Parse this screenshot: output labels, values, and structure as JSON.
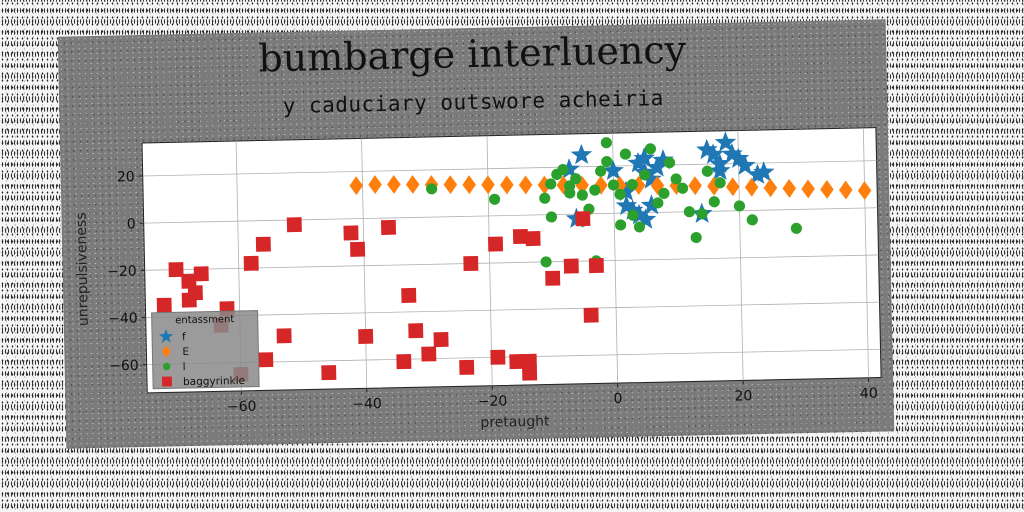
{
  "chart_data": {
    "type": "scatter",
    "title": "bumbarge interluency",
    "subtitle": "y caduciary outswore acheiria",
    "xlabel": "pretaught",
    "ylabel": "unrepulsiveness",
    "xlim": [
      -75,
      42
    ],
    "ylim": [
      -72,
      34
    ],
    "xticks": [
      -60,
      -40,
      -20,
      0,
      20,
      40
    ],
    "yticks": [
      20,
      0,
      -20,
      -40,
      -60
    ],
    "xtick_labels": [
      "−60",
      "−40",
      "−20",
      "0",
      "20",
      "40"
    ],
    "ytick_labels": [
      "20",
      "0",
      "−20",
      "−40",
      "−60"
    ],
    "grid": true,
    "legend": {
      "title": "entassment",
      "placement": "lower-left",
      "entries": [
        "f",
        "E",
        "l",
        "baggyrinkle"
      ]
    },
    "series": [
      {
        "name": "f",
        "marker": "star",
        "color": "#1f77b4",
        "points": [
          [
            -7,
            19
          ],
          [
            -5,
            25
          ],
          [
            -6,
            -2
          ],
          [
            0,
            18
          ],
          [
            2,
            9
          ],
          [
            3,
            1
          ],
          [
            4,
            21
          ],
          [
            5,
            23
          ],
          [
            5,
            17
          ],
          [
            6,
            14
          ],
          [
            7,
            19
          ],
          [
            8,
            22
          ],
          [
            2,
            3
          ],
          [
            4,
            -1
          ],
          [
            6,
            3
          ],
          [
            14,
            -1
          ],
          [
            15,
            26
          ],
          [
            16,
            24
          ],
          [
            17,
            17
          ],
          [
            17,
            20
          ],
          [
            18,
            29
          ],
          [
            19,
            24
          ],
          [
            20,
            22
          ],
          [
            21,
            19
          ],
          [
            23,
            15
          ],
          [
            24,
            16
          ],
          [
            5,
            -3
          ]
        ]
      },
      {
        "name": "E",
        "marker": "diamond",
        "color": "#ff7f0e",
        "points": [
          [
            -41,
            14
          ],
          [
            -38,
            14.3
          ],
          [
            -35,
            14.2
          ],
          [
            -32,
            14
          ],
          [
            -29,
            13.8
          ],
          [
            -26,
            13.6
          ],
          [
            -23,
            13.4
          ],
          [
            -20,
            13.2
          ],
          [
            -17,
            13
          ],
          [
            -14,
            12.8
          ],
          [
            -11,
            12.6
          ],
          [
            -8,
            12.4
          ],
          [
            -5,
            12.2
          ],
          [
            -2,
            12
          ],
          [
            1,
            11.8
          ],
          [
            4,
            11.6
          ],
          [
            7,
            11.4
          ],
          [
            10,
            11.2
          ],
          [
            13,
            11
          ],
          [
            16,
            10.6
          ],
          [
            19,
            10.2
          ],
          [
            22,
            9.8
          ],
          [
            25,
            9.4
          ],
          [
            28,
            9
          ],
          [
            31,
            8.6
          ],
          [
            34,
            8.2
          ],
          [
            37,
            7.8
          ],
          [
            40,
            7.4
          ]
        ]
      },
      {
        "name": "l",
        "marker": "circle",
        "color": "#2ca02c",
        "points": [
          [
            -29,
            12
          ],
          [
            -19,
            7
          ],
          [
            -11,
            7
          ],
          [
            -10,
            13
          ],
          [
            -9,
            17
          ],
          [
            -8,
            19
          ],
          [
            -7,
            12
          ],
          [
            -7,
            9
          ],
          [
            -6,
            15
          ],
          [
            -5,
            8
          ],
          [
            -4,
            2
          ],
          [
            -3,
            10
          ],
          [
            -2,
            18
          ],
          [
            -1,
            22
          ],
          [
            -1,
            30
          ],
          [
            0,
            12
          ],
          [
            1,
            8
          ],
          [
            1,
            -5
          ],
          [
            2,
            25
          ],
          [
            3,
            12
          ],
          [
            3,
            -1
          ],
          [
            4,
            -6
          ],
          [
            5,
            16
          ],
          [
            6,
            27
          ],
          [
            7,
            4
          ],
          [
            8,
            8
          ],
          [
            9,
            21
          ],
          [
            10,
            14
          ],
          [
            11,
            10
          ],
          [
            12,
            0
          ],
          [
            13,
            -11
          ],
          [
            14,
            -1
          ],
          [
            15,
            17
          ],
          [
            16,
            4
          ],
          [
            17,
            12
          ],
          [
            20,
            2
          ],
          [
            22,
            -4
          ],
          [
            29,
            -8
          ],
          [
            -10,
            -1
          ],
          [
            -11,
            -20
          ],
          [
            -5,
            -3
          ],
          [
            -3,
            -20
          ]
        ]
      },
      {
        "name": "baggyrinkle",
        "marker": "square",
        "color": "#d62728",
        "points": [
          [
            -51,
            -2
          ],
          [
            -56,
            -10
          ],
          [
            -58,
            -18
          ],
          [
            -42,
            -6
          ],
          [
            -41,
            -13
          ],
          [
            -36,
            -4
          ],
          [
            -33,
            -33
          ],
          [
            -32,
            -48
          ],
          [
            -30,
            -58
          ],
          [
            -28,
            -52
          ],
          [
            -23,
            -20
          ],
          [
            -19,
            -12
          ],
          [
            -15,
            -9
          ],
          [
            -13,
            -10
          ],
          [
            -10,
            -27
          ],
          [
            -7,
            -22
          ],
          [
            -5,
            -2
          ],
          [
            -3,
            -22
          ],
          [
            -4,
            -43
          ],
          [
            -19,
            -60
          ],
          [
            -16,
            -62
          ],
          [
            -14,
            -62
          ],
          [
            -14,
            -67
          ],
          [
            -24,
            -64
          ],
          [
            -34,
            -61
          ],
          [
            -40,
            -50
          ],
          [
            -46,
            -65
          ],
          [
            -53,
            -49
          ],
          [
            -56,
            -59
          ],
          [
            -60,
            -65
          ],
          [
            -66,
            -22
          ],
          [
            -68,
            -25
          ],
          [
            -67,
            -30
          ],
          [
            -68,
            -33
          ],
          [
            -70,
            -20
          ],
          [
            -72,
            -35
          ],
          [
            -62,
            -37
          ],
          [
            -63,
            -44
          ]
        ]
      }
    ]
  }
}
